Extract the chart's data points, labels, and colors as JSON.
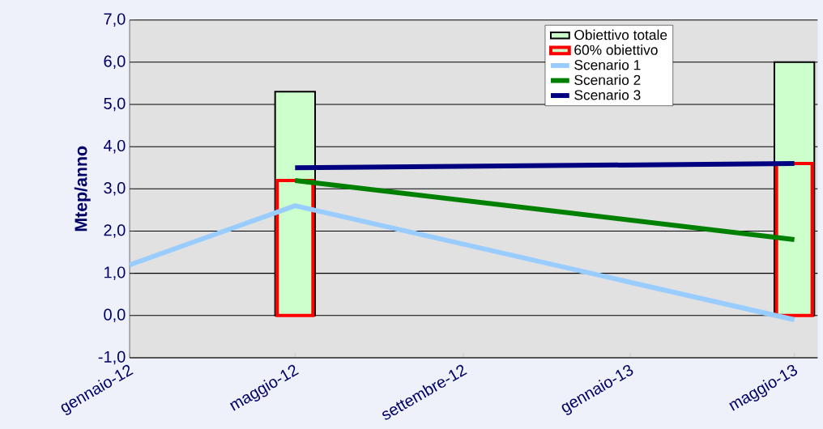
{
  "chart_data": {
    "type": "bar",
    "ylabel": "Mtep/anno",
    "series": [
      {
        "name": "Obiettivo totale",
        "color": "#ccffcc",
        "x": [
          "2012-05",
          "2013-05"
        ],
        "values": [
          5.3,
          6.0
        ]
      },
      {
        "name": "60% obiettivo",
        "color": "#ff0000",
        "x": [
          "2012-05",
          "2013-05"
        ],
        "values": [
          3.2,
          3.6
        ]
      },
      {
        "name": "Scenario 1",
        "type": "line",
        "color": "#99ccff",
        "x": [
          "2012-01",
          "2012-05",
          "2013-05"
        ],
        "values": [
          1.2,
          2.6,
          -0.1
        ]
      },
      {
        "name": "Scenario 2",
        "type": "line",
        "color": "#008000",
        "x": [
          "2012-05",
          "2013-05"
        ],
        "values": [
          3.2,
          1.8
        ]
      },
      {
        "name": "Scenario 3",
        "type": "line",
        "color": "#000080",
        "x": [
          "2012-05",
          "2013-05"
        ],
        "values": [
          3.5,
          3.6
        ]
      }
    ],
    "xlim": [
      "2012-01",
      "2013-05-18"
    ],
    "xticks": [
      {
        "value": "2012-01",
        "label": "gennaio-12"
      },
      {
        "value": "2012-05",
        "label": "maggio-12"
      },
      {
        "value": "2012-09",
        "label": "settembre-12"
      },
      {
        "value": "2013-01",
        "label": "gennaio-13"
      },
      {
        "value": "2013-05",
        "label": "maggio-13"
      }
    ],
    "ylim": [
      -1,
      7
    ],
    "yticks": [
      {
        "value": -1,
        "label": "-1,0"
      },
      {
        "value": 0,
        "label": "0,0"
      },
      {
        "value": 1,
        "label": "1,0"
      },
      {
        "value": 2,
        "label": "2,0"
      },
      {
        "value": 3,
        "label": "3,0"
      },
      {
        "value": 4,
        "label": "4,0"
      },
      {
        "value": 5,
        "label": "5,0"
      },
      {
        "value": 6,
        "label": "6,0"
      },
      {
        "value": 7,
        "label": "7,0"
      }
    ],
    "grid": "y",
    "legend": "top right"
  }
}
